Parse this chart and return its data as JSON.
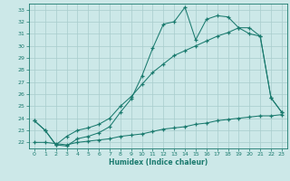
{
  "xlabel": "Humidex (Indice chaleur)",
  "bg_color": "#cce8e8",
  "line_color": "#1a7a6e",
  "grid_color": "#a8cccc",
  "xlim": [
    -0.5,
    23.5
  ],
  "ylim": [
    21.5,
    33.5
  ],
  "yticks": [
    22,
    23,
    24,
    25,
    26,
    27,
    28,
    29,
    30,
    31,
    32,
    33
  ],
  "xticks": [
    0,
    1,
    2,
    3,
    4,
    5,
    6,
    7,
    8,
    9,
    10,
    11,
    12,
    13,
    14,
    15,
    16,
    17,
    18,
    19,
    20,
    21,
    22,
    23
  ],
  "line1_x": [
    0,
    1,
    2,
    3,
    4,
    5,
    6,
    7,
    8,
    9,
    10,
    11,
    12,
    13,
    14,
    15,
    16,
    17,
    18,
    19,
    20,
    21,
    22,
    23
  ],
  "line1_y": [
    23.8,
    23.0,
    21.8,
    21.7,
    22.3,
    22.5,
    22.8,
    23.3,
    24.5,
    25.6,
    27.5,
    29.8,
    31.8,
    32.0,
    33.2,
    30.5,
    32.2,
    32.5,
    32.4,
    31.5,
    31.0,
    30.8,
    25.7,
    24.5
  ],
  "line2_x": [
    0,
    1,
    2,
    3,
    4,
    5,
    6,
    7,
    8,
    9,
    10,
    11,
    12,
    13,
    14,
    15,
    16,
    17,
    18,
    19,
    20,
    21,
    22,
    23
  ],
  "line2_y": [
    23.8,
    23.0,
    21.8,
    22.5,
    23.0,
    23.2,
    23.5,
    24.0,
    25.0,
    25.8,
    26.8,
    27.8,
    28.5,
    29.2,
    29.6,
    30.0,
    30.4,
    30.8,
    31.1,
    31.5,
    31.5,
    30.8,
    25.7,
    24.5
  ],
  "line3_x": [
    0,
    1,
    2,
    3,
    4,
    5,
    6,
    7,
    8,
    9,
    10,
    11,
    12,
    13,
    14,
    15,
    16,
    17,
    18,
    19,
    20,
    21,
    22,
    23
  ],
  "line3_y": [
    22.0,
    22.0,
    21.9,
    21.8,
    22.0,
    22.1,
    22.2,
    22.3,
    22.5,
    22.6,
    22.7,
    22.9,
    23.1,
    23.2,
    23.3,
    23.5,
    23.6,
    23.8,
    23.9,
    24.0,
    24.1,
    24.2,
    24.2,
    24.3
  ]
}
